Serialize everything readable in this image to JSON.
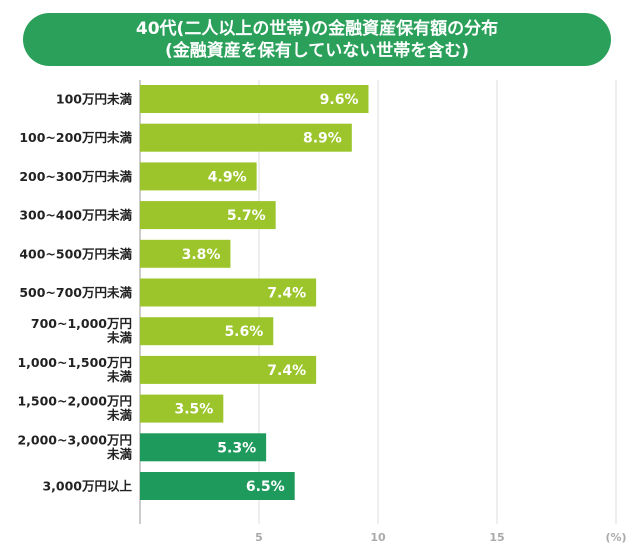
{
  "chart_data": {
    "type": "bar",
    "orientation": "horizontal",
    "title": [
      "40代(二人以上の世帯)の金融資産保有額の分布",
      "(金融資産を保有していない世帯を含む)"
    ],
    "categories": [
      [
        "100万円未満"
      ],
      [
        "100~200万円未満"
      ],
      [
        "200~300万円未満"
      ],
      [
        "300~400万円未満"
      ],
      [
        "400~500万円未満"
      ],
      [
        "500~700万円未満"
      ],
      [
        "700~1,000万円",
        "未満"
      ],
      [
        "1,000~1,500万円",
        "未満"
      ],
      [
        "1,500~2,000万円",
        "未満"
      ],
      [
        "2,000~3,000万円",
        "未満"
      ],
      [
        "3,000万円以上"
      ]
    ],
    "values": [
      9.6,
      8.9,
      4.9,
      5.7,
      3.8,
      7.4,
      5.6,
      7.4,
      3.5,
      5.3,
      6.5
    ],
    "value_labels": [
      "9.6%",
      "8.9%",
      "4.9%",
      "5.7%",
      "3.8%",
      "7.4%",
      "5.6%",
      "7.4%",
      "3.5%",
      "5.3%",
      "6.5%"
    ],
    "xticks": [
      "5",
      "10",
      "15"
    ],
    "xtick_values": [
      5,
      10,
      15
    ],
    "xunit": "(%)",
    "xlim": [
      0,
      20
    ],
    "grid": true,
    "colors": {
      "light_bar": "#9bc52b",
      "dark_bar": "#1e9a5c",
      "title_bg": "#2aa05a",
      "grid": "#dddddd",
      "axis": "#bbbbbb"
    },
    "dark_bar_indices": [
      9,
      10
    ]
  }
}
